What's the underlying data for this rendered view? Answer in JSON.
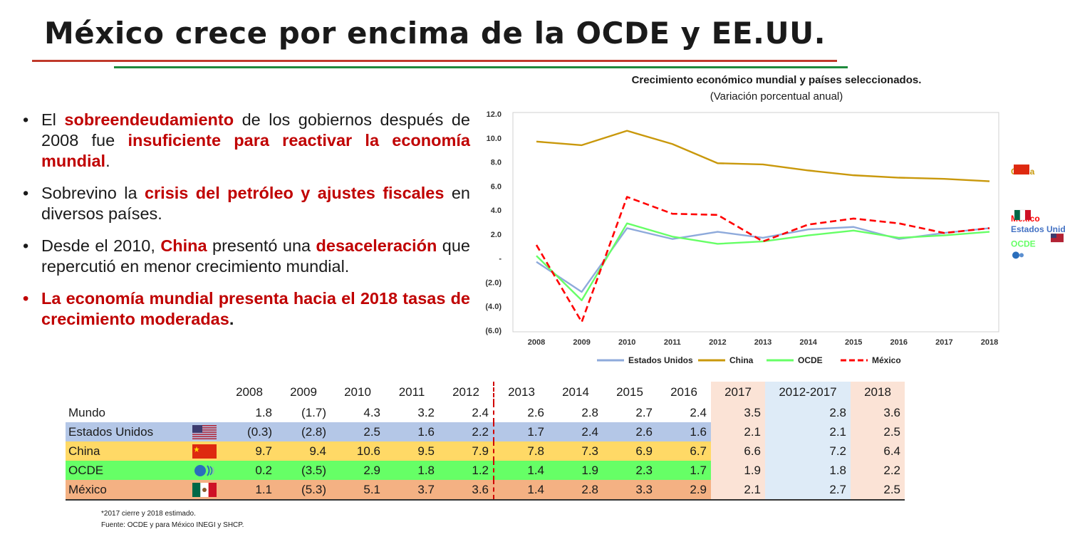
{
  "header": {
    "title": "México crece por encima de la OCDE y EE.UU."
  },
  "bullets": [
    {
      "parts": [
        {
          "t": "El ",
          "s": ""
        },
        {
          "t": "sobreendeudamiento",
          "s": "hl"
        },
        {
          "t": " de los gobiernos después de 2008 fue ",
          "s": ""
        },
        {
          "t": "insuficiente para reactivar la economía mundial",
          "s": "hl"
        },
        {
          "t": ".",
          "s": ""
        }
      ]
    },
    {
      "parts": [
        {
          "t": "Sobrevino la ",
          "s": ""
        },
        {
          "t": "crisis del petróleo y ajustes fiscales",
          "s": "hl"
        },
        {
          "t": " en diversos países.",
          "s": ""
        }
      ]
    },
    {
      "parts": [
        {
          "t": "Desde el 2010, ",
          "s": ""
        },
        {
          "t": "China",
          "s": "hl"
        },
        {
          "t": " presentó una ",
          "s": ""
        },
        {
          "t": "desaceleración",
          "s": "hl"
        },
        {
          "t": " que repercutió en menor crecimiento mundial.",
          "s": ""
        }
      ]
    },
    {
      "parts": [
        {
          "t": "La economía mundial presenta hacia el 2018 tasas de crecimiento moderadas",
          "s": ""
        },
        {
          "t": ".",
          "s": "blk"
        }
      ]
    }
  ],
  "chart_data": {
    "type": "line",
    "title": "Crecimiento económico mundial y países seleccionados.",
    "subtitle": "(Variación porcentual anual)",
    "x": [
      "2008",
      "2009",
      "2010",
      "2011",
      "2012",
      "2013",
      "2014",
      "2015",
      "2016",
      "2017",
      "2018"
    ],
    "ylim": [
      -6,
      12
    ],
    "yticks": [
      {
        "v": 12,
        "label": "12.0"
      },
      {
        "v": 10,
        "label": "10.0"
      },
      {
        "v": 8,
        "label": "8.0"
      },
      {
        "v": 6,
        "label": "6.0"
      },
      {
        "v": 4,
        "label": "4.0"
      },
      {
        "v": 2,
        "label": "2.0"
      },
      {
        "v": 0,
        "label": "-"
      },
      {
        "v": -2,
        "label": "(2.0)"
      },
      {
        "v": -4,
        "label": "(4.0)"
      },
      {
        "v": -6,
        "label": "(6.0)"
      }
    ],
    "grid": false,
    "legend_position": "bottom",
    "series": [
      {
        "name": "Estados Unidos",
        "color": "#8eaadb",
        "dash": false,
        "values": [
          -0.3,
          -2.8,
          2.5,
          1.6,
          2.2,
          1.7,
          2.4,
          2.6,
          1.6,
          2.1,
          2.5
        ]
      },
      {
        "name": "China",
        "color": "#c9980b",
        "dash": false,
        "values": [
          9.7,
          9.4,
          10.6,
          9.5,
          7.9,
          7.8,
          7.3,
          6.9,
          6.7,
          6.6,
          6.4
        ]
      },
      {
        "name": "OCDE",
        "color": "#66ff66",
        "dash": false,
        "values": [
          0.2,
          -3.5,
          2.9,
          1.8,
          1.2,
          1.4,
          1.9,
          2.3,
          1.7,
          1.9,
          2.2
        ]
      },
      {
        "name": "México",
        "color": "#ff0000",
        "dash": true,
        "values": [
          1.1,
          -5.3,
          5.1,
          3.7,
          3.6,
          1.4,
          2.8,
          3.3,
          2.9,
          2.1,
          2.5
        ]
      }
    ],
    "end_labels": [
      {
        "text": "China",
        "color": "#c9980b",
        "y": 7.2,
        "flag": "cn"
      },
      {
        "text": "México",
        "color": "#ff0000",
        "y": 3.3,
        "flag": "mx"
      },
      {
        "text": "Estados Unidos",
        "color": "#4472c4",
        "y": 2.4,
        "flag": "us"
      },
      {
        "text": "OCDE",
        "color": "#66ff66",
        "y": 1.2,
        "flag": "oecd"
      }
    ]
  },
  "table": {
    "headers": [
      "2008",
      "2009",
      "2010",
      "2011",
      "2012",
      "2013",
      "2014",
      "2015",
      "2016",
      "2017",
      "2012-2017",
      "2018"
    ],
    "rows": [
      {
        "label": "Mundo",
        "flag": "",
        "values": [
          "1.8",
          "(1.7)",
          "4.3",
          "3.2",
          "2.4",
          "2.6",
          "2.8",
          "2.7",
          "2.4",
          "3.5",
          "2.8",
          "3.6"
        ]
      },
      {
        "label": "Estados Unidos",
        "flag": "us",
        "values": [
          "(0.3)",
          "(2.8)",
          "2.5",
          "1.6",
          "2.2",
          "1.7",
          "2.4",
          "2.6",
          "1.6",
          "2.1",
          "2.1",
          "2.5"
        ]
      },
      {
        "label": "China",
        "flag": "cn",
        "values": [
          "9.7",
          "9.4",
          "10.6",
          "9.5",
          "7.9",
          "7.8",
          "7.3",
          "6.9",
          "6.7",
          "6.6",
          "7.2",
          "6.4"
        ]
      },
      {
        "label": "OCDE",
        "flag": "oecd",
        "values": [
          "0.2",
          "(3.5)",
          "2.9",
          "1.8",
          "1.2",
          "1.4",
          "1.9",
          "2.3",
          "1.7",
          "1.9",
          "1.8",
          "2.2"
        ]
      },
      {
        "label": "México",
        "flag": "mx",
        "values": [
          "1.1",
          "(5.3)",
          "5.1",
          "3.7",
          "3.6",
          "1.4",
          "2.8",
          "3.3",
          "2.9",
          "2.1",
          "2.7",
          "2.5"
        ]
      }
    ]
  },
  "notes": {
    "line1": "*2017 cierre y 2018 estimado.",
    "line2": "Fuente: OCDE y para México INEGI y SHCP."
  }
}
